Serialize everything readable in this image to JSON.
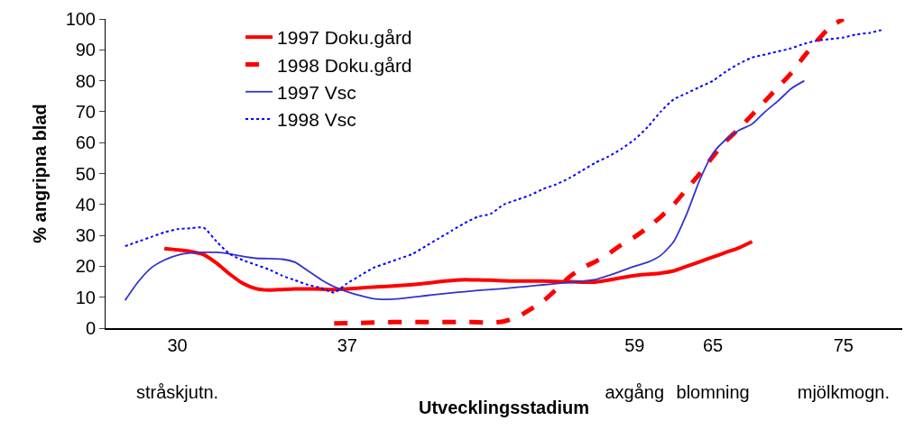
{
  "chart_data": {
    "type": "line",
    "xlabel": "Utvecklingsstadium",
    "ylabel": "% angripna blad",
    "categories": [
      null,
      null,
      null,
      null,
      null,
      "30\nstråskjutn.",
      null,
      null,
      null,
      null,
      null,
      null,
      null,
      null,
      null,
      null,
      null,
      null,
      "37",
      null,
      null,
      null,
      null,
      null,
      null,
      null,
      null,
      null,
      null,
      null,
      null,
      null,
      null,
      null,
      null,
      null,
      null,
      null,
      null,
      null,
      "59\naxgång",
      null,
      null,
      null,
      null,
      null,
      "65\nblomning",
      null,
      null,
      null,
      null,
      null,
      null,
      null,
      null,
      null,
      "75\nmjölkmogn.",
      null,
      null,
      null,
      null
    ],
    "series": [
      {
        "name": "1997 Doku.gård",
        "color": "#ff0000",
        "line_style": "solid",
        "values": [
          null,
          null,
          null,
          null,
          25.7,
          25.3,
          24.8,
          23.8,
          21,
          17.5,
          14.5,
          12.8,
          12.3,
          12.5,
          12.7,
          12.7,
          12.6,
          12.5,
          12.7,
          13,
          13.3,
          13.5,
          13.8,
          14.1,
          14.5,
          15,
          15.4,
          15.7,
          15.6,
          15.5,
          15.3,
          15.2,
          15.2,
          15.2,
          15.1,
          15,
          14.9,
          14.9,
          15.5,
          16.3,
          17,
          17.4,
          17.8,
          18.5,
          20,
          21.5,
          23,
          24.5,
          26,
          28,
          null,
          null,
          null,
          null,
          null,
          null,
          null,
          null,
          null,
          null,
          null
        ]
      },
      {
        "name": "1998 Doku.gård",
        "color": "#ff0000",
        "line_style": "dashed",
        "values": [
          null,
          null,
          null,
          null,
          null,
          null,
          null,
          null,
          null,
          null,
          null,
          null,
          null,
          null,
          null,
          null,
          null,
          1.5,
          1.6,
          1.7,
          1.8,
          1.9,
          2,
          2,
          2,
          2,
          2,
          2,
          1.9,
          1.8,
          2.2,
          3.5,
          6,
          8.7,
          12.5,
          16.5,
          19.5,
          21.5,
          24,
          27,
          29.5,
          32.5,
          36,
          40,
          45,
          50,
          55.5,
          60.5,
          64.5,
          69,
          73.5,
          78,
          82.5,
          88,
          93,
          97.5,
          100,
          null,
          null,
          null,
          null
        ]
      },
      {
        "name": "1997 Vsc",
        "color": "#3333cc",
        "line_style": "solid",
        "values": [
          null,
          9,
          15,
          19.5,
          22,
          23.6,
          24.3,
          24.5,
          24.5,
          24,
          23.2,
          22.6,
          22.5,
          22.3,
          21.3,
          18.5,
          15.7,
          13.4,
          11.8,
          10.5,
          9.5,
          9.3,
          9.5,
          10,
          10.5,
          11,
          11.4,
          11.8,
          12.2,
          12.5,
          12.8,
          13.2,
          13.6,
          14,
          14.4,
          14.8,
          15.2,
          15.7,
          17,
          18.5,
          20,
          21.3,
          23.5,
          28,
          37,
          48,
          56.5,
          61,
          64,
          66,
          70,
          73.5,
          77.5,
          80,
          null,
          null,
          null,
          null,
          null,
          null,
          null
        ]
      },
      {
        "name": "1998 Vsc",
        "color": "#0000ff",
        "line_style": "dotted",
        "values": [
          null,
          26.5,
          28,
          29.5,
          31,
          32,
          32.3,
          32.5,
          28,
          24,
          22,
          20.5,
          19,
          17,
          15.5,
          14,
          13,
          11.5,
          14.5,
          17,
          19.5,
          21,
          22.5,
          24,
          26.5,
          29,
          31.5,
          34,
          36,
          37,
          40,
          41.5,
          43,
          45,
          46.5,
          48.5,
          51,
          53.5,
          55.5,
          58,
          61,
          65,
          70,
          74,
          76,
          78,
          80,
          83,
          85.5,
          87.5,
          88.5,
          89.5,
          90.5,
          92,
          93,
          93.5,
          94,
          95,
          95.5,
          96.5,
          null
        ]
      }
    ],
    "ylim": [
      0,
      100
    ],
    "yticks": [
      0,
      10,
      20,
      30,
      40,
      50,
      60,
      70,
      80,
      90,
      100
    ],
    "legend": "top left"
  }
}
